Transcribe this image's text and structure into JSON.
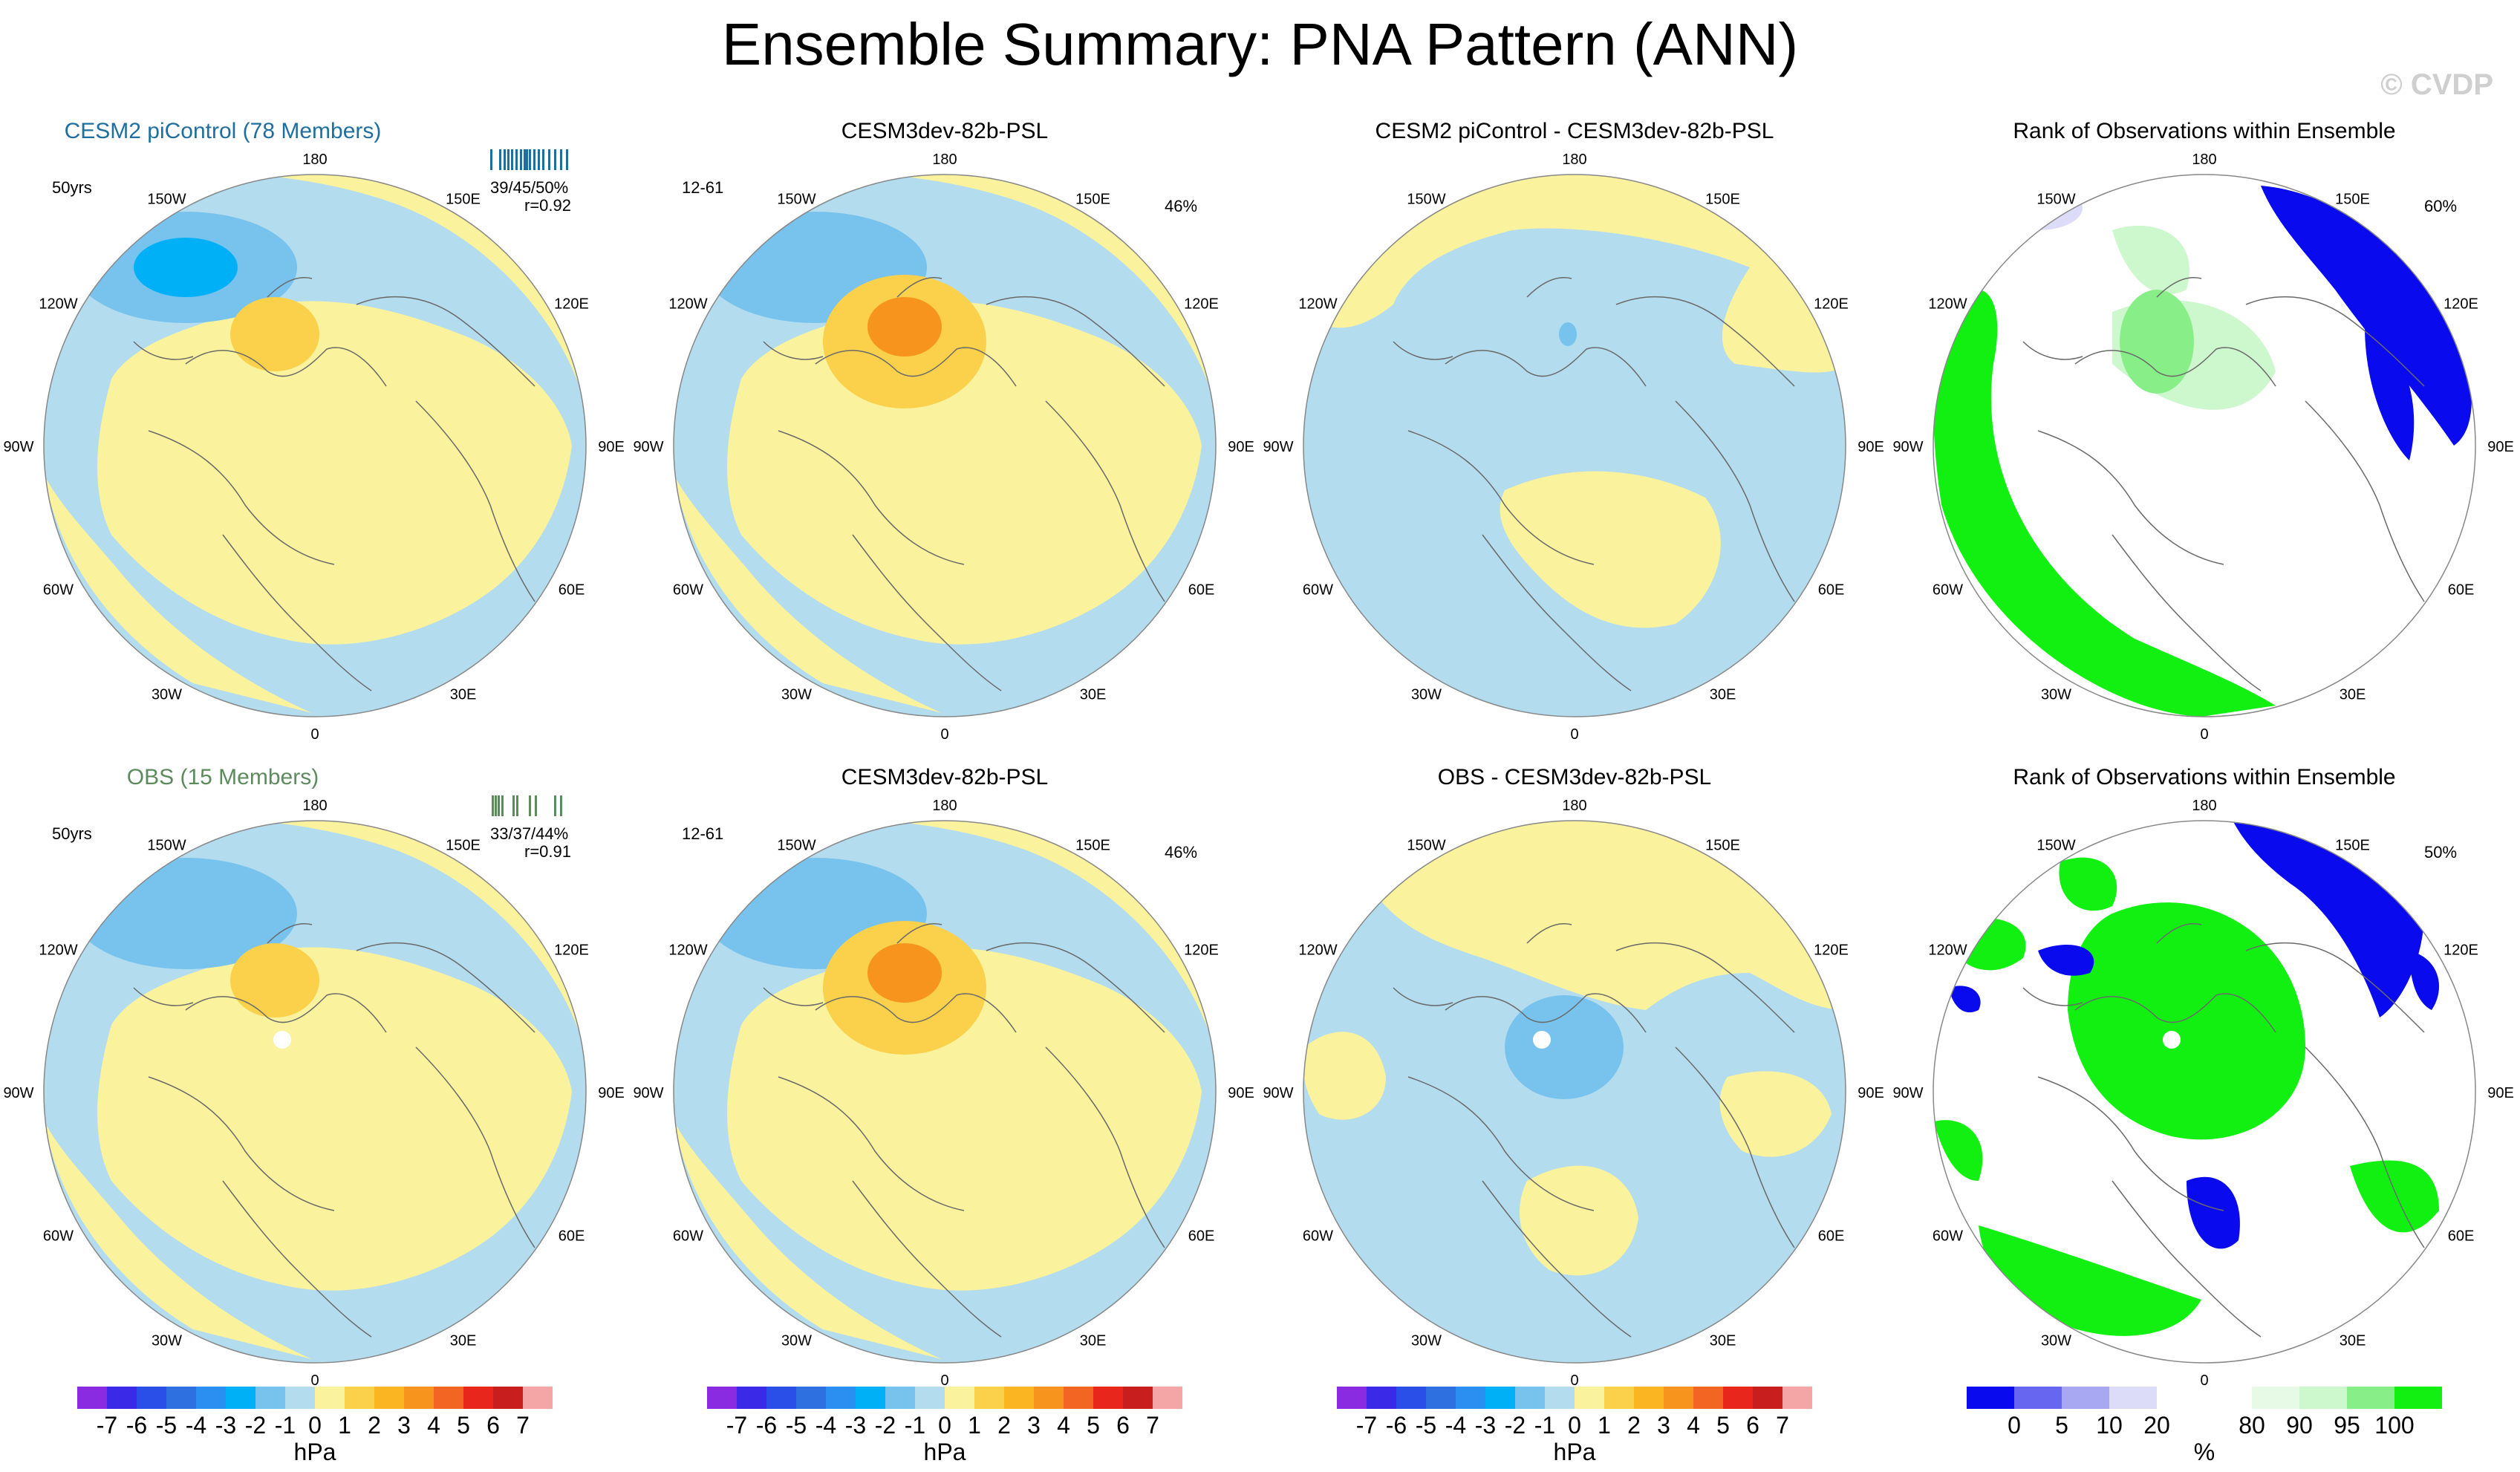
{
  "title": "Ensemble Summary: PNA Pattern (ANN)",
  "copyright": "© CVDP",
  "colors": {
    "ocean_blue": "#b3dcef",
    "light_yellow": "#faf29c",
    "blue1": "#77c3ed",
    "blue2": "#33b8f0",
    "blue3": "#00b0f6",
    "orange1": "#fbd04a",
    "orange2": "#fbb422",
    "orange3": "#f7941d",
    "rank_blue": "#0a0aee",
    "rank_green": "#11f011",
    "rank_lightgreen": "#cdf7cd",
    "rank_white": "#ffffff",
    "title_blue": "#1e6f9f",
    "title_green": "#5e8b5e"
  },
  "panels": [
    {
      "title": "CESM2 piControl (78 Members)",
      "corner": "50yrs",
      "stat_line1": "39/45/50%",
      "stat_line2": "r=0.92",
      "pct": ""
    },
    {
      "title": "CESM3dev-82b-PSL",
      "corner": "12-61",
      "stat_line1": "",
      "stat_line2": "",
      "pct": "46%"
    },
    {
      "title": "CESM2 piControl - CESM3dev-82b-PSL",
      "corner": "",
      "stat_line1": "",
      "stat_line2": "",
      "pct": ""
    },
    {
      "title": "Rank of Observations within Ensemble",
      "corner": "",
      "stat_line1": "",
      "stat_line2": "",
      "pct": "60%"
    },
    {
      "title": "OBS (15 Members)",
      "corner": "50yrs",
      "stat_line1": "33/37/44%",
      "stat_line2": "r=0.91",
      "pct": ""
    },
    {
      "title": "CESM3dev-82b-PSL",
      "corner": "12-61",
      "stat_line1": "",
      "stat_line2": "",
      "pct": "46%"
    },
    {
      "title": "OBS - CESM3dev-82b-PSL",
      "corner": "",
      "stat_line1": "",
      "stat_line2": "",
      "pct": ""
    },
    {
      "title": "Rank of Observations within Ensemble",
      "corner": "",
      "stat_line1": "",
      "stat_line2": "",
      "pct": "50%"
    }
  ],
  "map_labels": [
    "180",
    "150E",
    "120E",
    "90E",
    "60E",
    "30E",
    "0",
    "30W",
    "60W",
    "90W",
    "120W",
    "150W"
  ],
  "chart_data": {
    "type": "heatmap",
    "title": "Ensemble Summary: PNA Pattern (ANN)",
    "projection": "polar stereographic (North Pole)",
    "longitude_labels": [
      "180",
      "150E",
      "120E",
      "90E",
      "60E",
      "30E",
      "0",
      "30W",
      "60W",
      "90W",
      "120W",
      "150W"
    ],
    "colorbars": [
      {
        "units": "hPa",
        "levels": [
          "-7",
          "-6",
          "-5",
          "-4",
          "-3",
          "-2",
          "-1",
          "0",
          "1",
          "2",
          "3",
          "4",
          "5",
          "6",
          "7"
        ],
        "colors": [
          "#8a2be2",
          "#3a2ae8",
          "#2a4fe8",
          "#2e70e0",
          "#2a8ff0",
          "#00b0f6",
          "#77c3ed",
          "#b3dcef",
          "#faf29c",
          "#fbd04a",
          "#fbb422",
          "#f7941d",
          "#f26522",
          "#e8261c",
          "#c81e1e",
          "#f4a6a6"
        ]
      },
      {
        "units": "hPa",
        "levels": [
          "-7",
          "-6",
          "-5",
          "-4",
          "-3",
          "-2",
          "-1",
          "0",
          "1",
          "2",
          "3",
          "4",
          "5",
          "6",
          "7"
        ],
        "colors": [
          "#8a2be2",
          "#3a2ae8",
          "#2a4fe8",
          "#2e70e0",
          "#2a8ff0",
          "#00b0f6",
          "#77c3ed",
          "#b3dcef",
          "#faf29c",
          "#fbd04a",
          "#fbb422",
          "#f7941d",
          "#f26522",
          "#e8261c",
          "#c81e1e",
          "#f4a6a6"
        ]
      },
      {
        "units": "hPa",
        "levels": [
          "-7",
          "-6",
          "-5",
          "-4",
          "-3",
          "-2",
          "-1",
          "0",
          "1",
          "2",
          "3",
          "4",
          "5",
          "6",
          "7"
        ],
        "colors": [
          "#8a2be2",
          "#3a2ae8",
          "#2a4fe8",
          "#2e70e0",
          "#2a8ff0",
          "#00b0f6",
          "#77c3ed",
          "#b3dcef",
          "#faf29c",
          "#fbd04a",
          "#fbb422",
          "#f7941d",
          "#f26522",
          "#e8261c",
          "#c81e1e",
          "#f4a6a6"
        ]
      },
      {
        "units": "%",
        "levels": [
          "0",
          "5",
          "10",
          "20",
          "80",
          "90",
          "95",
          "100"
        ],
        "colors": [
          "#0a0aee",
          "#6666f0",
          "#a8a8f2",
          "#dcdcf8",
          "#ffffff",
          "#ffffff",
          "#e6fae6",
          "#cdf7cd",
          "#88ee88",
          "#11f011"
        ]
      }
    ]
  }
}
